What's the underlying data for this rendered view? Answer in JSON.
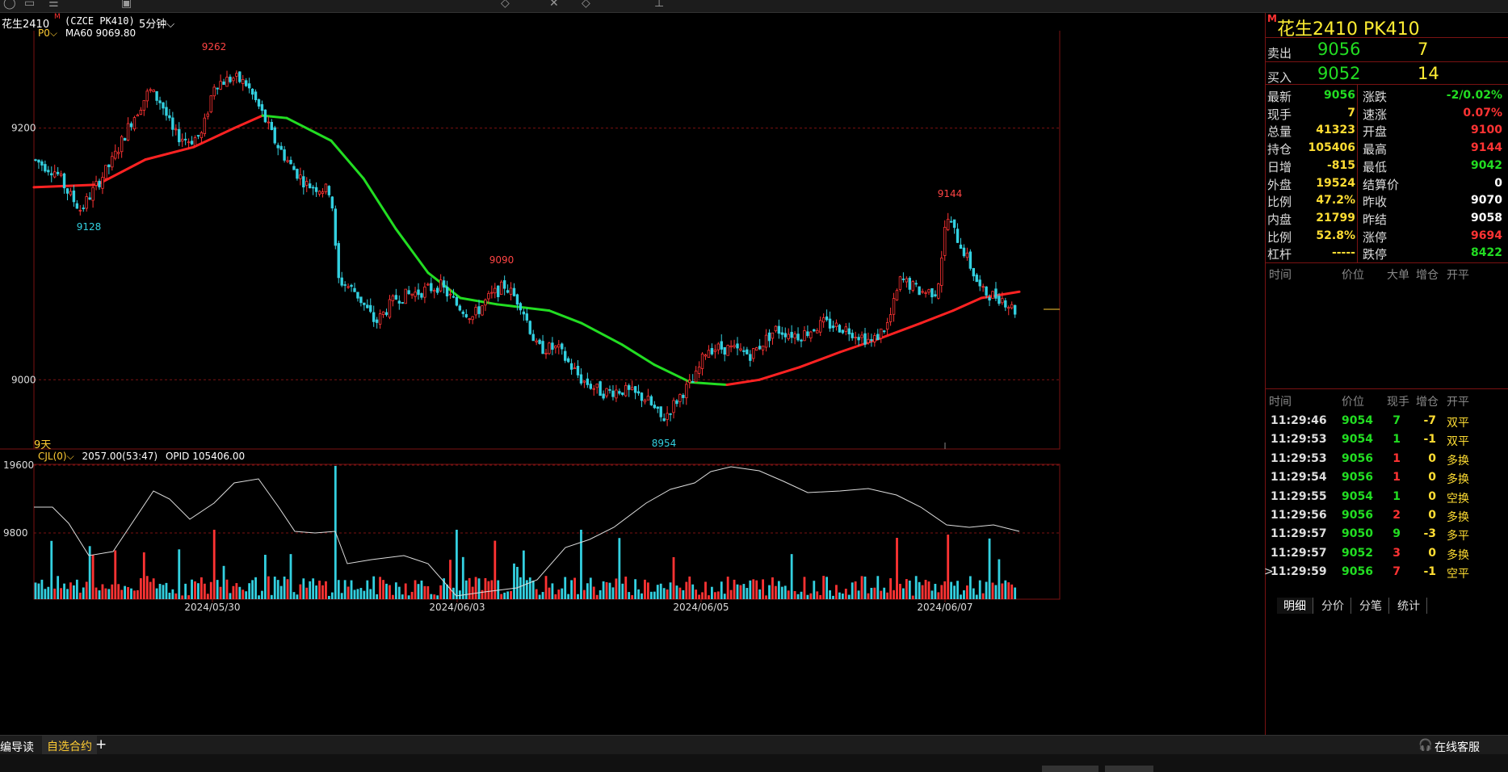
{
  "symbol_bar": {
    "name": "花生2410",
    "flag": "M",
    "code": "(CZCE PK410)",
    "period": "5分钟"
  },
  "indicator_labels": {
    "main": "P0",
    "ma": "MA60 9069.80",
    "days": "9天",
    "sub": "CJL(0)",
    "sub_values": "2057.00(53:47)",
    "opid": "OPID 105406.00"
  },
  "chart_data": {
    "type": "candlestick",
    "price_axis": {
      "ylim": [
        8945,
        9280
      ],
      "ticks": [
        9200,
        9000
      ]
    },
    "volume_axis": {
      "ticks": [
        "19600",
        "9800"
      ]
    },
    "x_labels": [
      "2024/05/30",
      "2024/06/03",
      "2024/06/05",
      "2024/06/07"
    ],
    "annotations": [
      {
        "label": "9262",
        "type": "high"
      },
      {
        "label": "9128",
        "type": "low"
      },
      {
        "label": "9090",
        "type": "high"
      },
      {
        "label": "8954",
        "type": "low"
      },
      {
        "label": "9144",
        "type": "high"
      }
    ],
    "ma60_last": 9069.8,
    "colors": {
      "up": "#ff3333",
      "down": "#33d0e0",
      "ma_up": "#ff2222",
      "ma_down": "#22dd22",
      "oi_line": "#dddddd"
    }
  },
  "quote_panel": {
    "title": "花生2410 PK410",
    "flag": "M",
    "sell": {
      "label": "卖出",
      "price": "9056",
      "vol": "7"
    },
    "buy": {
      "label": "买入",
      "price": "9052",
      "vol": "14"
    },
    "rows": [
      {
        "l1": "最新",
        "v1": "9056",
        "c1": "#22dd22",
        "l2": "涨跌",
        "v2": "-2/0.02%",
        "c2": "#22dd22"
      },
      {
        "l1": "现手",
        "v1": "7",
        "c1": "#ffdd33",
        "l2": "速涨",
        "v2": "0.07%",
        "c2": "#ff3333"
      },
      {
        "l1": "总量",
        "v1": "41323",
        "c1": "#ffdd33",
        "l2": "开盘",
        "v2": "9100",
        "c2": "#ff3333"
      },
      {
        "l1": "持仓",
        "v1": "105406",
        "c1": "#ffdd33",
        "l2": "最高",
        "v2": "9144",
        "c2": "#ff3333"
      },
      {
        "l1": "日增",
        "v1": "-815",
        "c1": "#ffdd33",
        "l2": "最低",
        "v2": "9042",
        "c2": "#22dd22"
      },
      {
        "l1": "外盘",
        "v1": "19524",
        "c1": "#ffdd33",
        "l2": "结算价",
        "v2": "0",
        "c2": "#ffffff"
      },
      {
        "l1": "比例",
        "v1": "47.2%",
        "c1": "#ffdd33",
        "l2": "昨收",
        "v2": "9070",
        "c2": "#ffffff"
      },
      {
        "l1": "内盘",
        "v1": "21799",
        "c1": "#ffdd33",
        "l2": "昨结",
        "v2": "9058",
        "c2": "#ffffff"
      },
      {
        "l1": "比例",
        "v1": "52.8%",
        "c1": "#ffdd33",
        "l2": "涨停",
        "v2": "9694",
        "c2": "#ff3333"
      },
      {
        "l1": "杠杆",
        "v1": "-----",
        "c1": "#ffdd33",
        "l2": "跌停",
        "v2": "8422",
        "c2": "#22dd22"
      }
    ],
    "big_order_headers": [
      "时间",
      "价位",
      "大单",
      "增仓",
      "开平"
    ],
    "tick_headers": [
      "时间",
      "价位",
      "现手",
      "增仓",
      "开平"
    ],
    "ticks": [
      {
        "time": "11:29:46",
        "price": "9054",
        "qty": "7",
        "qc": "#22dd22",
        "chg": "-7",
        "type": "双平"
      },
      {
        "time": "11:29:53",
        "price": "9054",
        "qty": "1",
        "qc": "#22dd22",
        "chg": "-1",
        "type": "双平"
      },
      {
        "time": "11:29:53",
        "price": "9056",
        "qty": "1",
        "qc": "#ff3333",
        "chg": "0",
        "type": "多换"
      },
      {
        "time": "11:29:54",
        "price": "9056",
        "qty": "1",
        "qc": "#ff3333",
        "chg": "0",
        "type": "多换"
      },
      {
        "time": "11:29:55",
        "price": "9054",
        "qty": "1",
        "qc": "#22dd22",
        "chg": "0",
        "type": "空换"
      },
      {
        "time": "11:29:56",
        "price": "9056",
        "qty": "2",
        "qc": "#ff3333",
        "chg": "0",
        "type": "多换"
      },
      {
        "time": "11:29:57",
        "price": "9050",
        "qty": "9",
        "qc": "#22dd22",
        "chg": "-3",
        "type": "多平"
      },
      {
        "time": "11:29:57",
        "price": "9052",
        "qty": "3",
        "qc": "#ff3333",
        "chg": "0",
        "type": "多换"
      },
      {
        "time": "11:29:59",
        "price": "9056",
        "qty": "7",
        "qc": "#ff3333",
        "chg": "-1",
        "type": "空平"
      }
    ],
    "tabs": [
      "明细",
      "分价",
      "分笔",
      "统计"
    ]
  },
  "bottom_bar": {
    "guide": "编导读",
    "watchlist": "自选合约",
    "add": "+",
    "service": "在线客服"
  }
}
